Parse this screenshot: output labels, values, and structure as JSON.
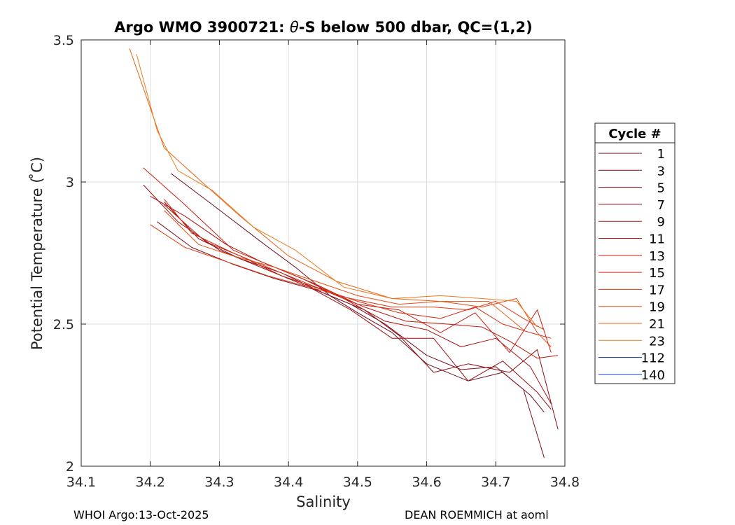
{
  "chart_data": {
    "type": "line",
    "title_prefix": "Argo WMO 3900721: ",
    "title_theta": "θ",
    "title_suffix": "-S below 500 dbar,  QC=(1,2)",
    "xlabel": "Salinity",
    "ylabel": "Potential Temperature ( ̊C)",
    "xlim": [
      34.1,
      34.8
    ],
    "ylim": [
      2.0,
      3.5
    ],
    "xticks": [
      "34.1",
      "34.2",
      "34.3",
      "34.4",
      "34.5",
      "34.6",
      "34.7",
      "34.8"
    ],
    "yticks": [
      "2",
      "2.5",
      "3",
      "3.5"
    ],
    "grid": true,
    "legend_title": "Cycle #",
    "legend_position": "right",
    "series": [
      {
        "name": "1",
        "color": "#6b0d1c",
        "x": [
          34.23,
          34.29,
          34.36,
          34.41,
          34.46,
          34.5,
          34.55,
          34.6,
          34.66,
          34.71,
          34.75,
          34.77
        ],
        "y": [
          3.03,
          2.92,
          2.79,
          2.7,
          2.6,
          2.54,
          2.47,
          2.36,
          2.3,
          2.33,
          2.25,
          2.19
        ]
      },
      {
        "name": "3",
        "color": "#7a0c18",
        "x": [
          34.21,
          34.26,
          34.32,
          34.38,
          34.44,
          34.49,
          34.54,
          34.6,
          34.65,
          34.7,
          34.74,
          34.77
        ],
        "y": [
          2.86,
          2.77,
          2.71,
          2.66,
          2.62,
          2.57,
          2.5,
          2.39,
          2.34,
          2.35,
          2.27,
          2.03
        ]
      },
      {
        "name": "5",
        "color": "#8a0b14",
        "x": [
          34.22,
          34.27,
          34.33,
          34.39,
          34.45,
          34.51,
          34.56,
          34.61,
          34.66,
          34.72,
          34.76,
          34.79
        ],
        "y": [
          2.93,
          2.8,
          2.73,
          2.68,
          2.61,
          2.55,
          2.46,
          2.33,
          2.36,
          2.33,
          2.41,
          2.13
        ]
      },
      {
        "name": "7",
        "color": "#9c0d10",
        "x": [
          34.19,
          34.24,
          34.3,
          34.37,
          34.43,
          34.49,
          34.55,
          34.61,
          34.66,
          34.71,
          34.76,
          34.78
        ],
        "y": [
          2.99,
          2.86,
          2.76,
          2.69,
          2.63,
          2.55,
          2.45,
          2.45,
          2.3,
          2.37,
          2.26,
          2.2
        ]
      },
      {
        "name": "9",
        "color": "#ad120e",
        "x": [
          34.2,
          34.25,
          34.31,
          34.36,
          34.42,
          34.48,
          34.54,
          34.6,
          34.65,
          34.7,
          34.75,
          34.78
        ],
        "y": [
          2.95,
          2.88,
          2.78,
          2.72,
          2.66,
          2.59,
          2.51,
          2.48,
          2.42,
          2.45,
          2.35,
          2.22
        ]
      },
      {
        "name": "11",
        "color": "#bd170c",
        "x": [
          34.22,
          34.28,
          34.33,
          34.39,
          34.45,
          34.51,
          34.57,
          34.63,
          34.68,
          34.72,
          34.76,
          34.79
        ],
        "y": [
          2.92,
          2.79,
          2.74,
          2.67,
          2.62,
          2.56,
          2.51,
          2.5,
          2.49,
          2.44,
          2.38,
          2.39
        ]
      },
      {
        "name": "13",
        "color": "#cc1d0c",
        "x": [
          34.19,
          34.25,
          34.32,
          34.38,
          34.44,
          34.5,
          34.56,
          34.62,
          34.67,
          34.72,
          34.76,
          34.78
        ],
        "y": [
          3.05,
          2.92,
          2.76,
          2.7,
          2.64,
          2.57,
          2.55,
          2.47,
          2.54,
          2.4,
          2.55,
          2.4
        ]
      },
      {
        "name": "15",
        "color": "#d9260d",
        "x": [
          34.22,
          34.26,
          34.32,
          34.38,
          34.44,
          34.5,
          34.56,
          34.62,
          34.67,
          34.71,
          34.75,
          34.78
        ],
        "y": [
          2.94,
          2.82,
          2.75,
          2.69,
          2.63,
          2.58,
          2.54,
          2.52,
          2.56,
          2.5,
          2.47,
          2.45
        ]
      },
      {
        "name": "17",
        "color": "#e3350f",
        "x": [
          34.2,
          34.25,
          34.31,
          34.37,
          34.43,
          34.49,
          34.55,
          34.61,
          34.66,
          34.7,
          34.74,
          34.77
        ],
        "y": [
          2.85,
          2.77,
          2.72,
          2.67,
          2.63,
          2.59,
          2.56,
          2.56,
          2.55,
          2.58,
          2.52,
          2.48
        ]
      },
      {
        "name": "19",
        "color": "#e94a12",
        "x": [
          34.22,
          34.27,
          34.32,
          34.38,
          34.44,
          34.5,
          34.56,
          34.62,
          34.68,
          34.73,
          34.76,
          34.78
        ],
        "y": [
          2.9,
          2.78,
          2.74,
          2.7,
          2.65,
          2.6,
          2.57,
          2.58,
          2.56,
          2.59,
          2.47,
          2.42
        ]
      },
      {
        "name": "21",
        "color": "#ea6216",
        "x": [
          34.17,
          34.22,
          34.27,
          34.33,
          34.4,
          34.47,
          34.55,
          34.62,
          34.69,
          34.74
        ],
        "y": [
          3.47,
          3.12,
          3.01,
          2.88,
          2.74,
          2.65,
          2.59,
          2.58,
          2.58,
          2.48
        ]
      },
      {
        "name": "23",
        "color": "#eb7a1c",
        "x": [
          34.18,
          34.21,
          34.24,
          34.29,
          34.35,
          34.41,
          34.48,
          34.55,
          34.62,
          34.68,
          34.73,
          34.76
        ],
        "y": [
          3.45,
          3.18,
          3.04,
          2.97,
          2.84,
          2.76,
          2.63,
          2.59,
          2.6,
          2.59,
          2.58,
          2.49
        ]
      },
      {
        "name": "112",
        "color": "#08308c",
        "x": [],
        "y": []
      },
      {
        "name": "140",
        "color": "#1a3ad6",
        "x": [],
        "y": []
      }
    ]
  },
  "footer": {
    "left": "WHOI Argo:13-Oct-2025",
    "right": "DEAN ROEMMICH at aoml"
  }
}
